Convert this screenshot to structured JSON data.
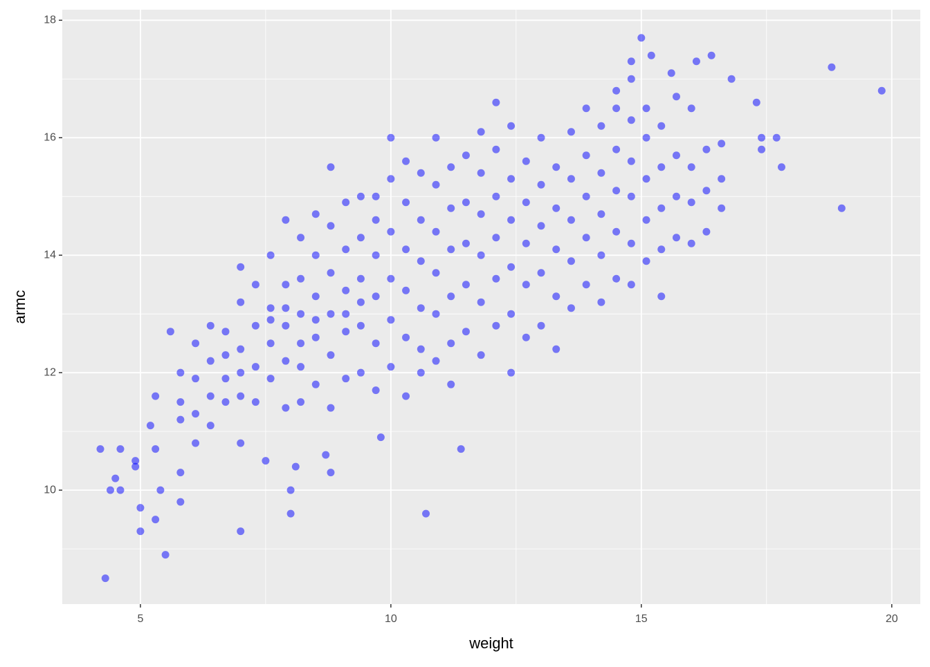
{
  "chart_data": {
    "type": "scatter",
    "x_label": "weight",
    "y_label": "armc",
    "color": "#0000ff",
    "opacity": 0.5,
    "grid": true,
    "xlim": [
      3.44,
      20.57
    ],
    "ylim": [
      8.06,
      18.18
    ],
    "xticks": [
      5,
      10,
      15,
      20
    ],
    "yticks": [
      10,
      12,
      14,
      16,
      18
    ],
    "xminor": [
      7.5,
      12.5,
      17.5
    ],
    "yminor": [
      9,
      11,
      13,
      15,
      17
    ],
    "x": [
      4.2,
      4.3,
      4.4,
      4.5,
      4.6,
      4.6,
      4.9,
      4.9,
      5.0,
      5.0,
      5.2,
      5.3,
      5.3,
      5.3,
      5.4,
      5.5,
      5.6,
      5.8,
      5.8,
      7.0,
      7.0,
      7.5,
      8.0,
      8.0,
      8.1,
      8.7,
      8.8,
      9.8,
      10.7,
      11.4,
      15.0,
      15.2,
      14.8,
      16.4,
      16.1,
      15.6,
      16.8,
      14.8,
      18.8,
      19.8,
      19.0,
      17.8,
      17.3,
      17.7,
      17.4,
      17.4,
      14.5,
      12.1,
      15.4,
      5.8,
      5.8,
      5.8,
      6.1,
      6.1,
      6.1,
      6.1,
      6.4,
      6.4,
      6.4,
      6.4,
      6.7,
      6.7,
      6.7,
      6.7,
      7.0,
      7.0,
      7.0,
      7.0,
      7.0,
      7.3,
      7.3,
      7.3,
      7.3,
      7.6,
      7.6,
      7.6,
      7.6,
      7.6,
      7.9,
      7.9,
      7.9,
      7.9,
      7.9,
      7.9,
      8.2,
      8.2,
      8.2,
      8.2,
      8.2,
      8.2,
      8.5,
      8.5,
      8.5,
      8.5,
      8.5,
      8.5,
      8.8,
      8.8,
      8.8,
      8.8,
      8.8,
      8.8,
      9.1,
      9.1,
      9.1,
      9.1,
      9.1,
      9.1,
      9.4,
      9.4,
      9.4,
      9.4,
      9.4,
      9.4,
      9.7,
      9.7,
      9.7,
      9.7,
      9.7,
      9.7,
      10.0,
      10.0,
      10.0,
      10.0,
      10.0,
      10.0,
      10.3,
      10.3,
      10.3,
      10.3,
      10.3,
      10.3,
      10.6,
      10.6,
      10.6,
      10.6,
      10.6,
      10.6,
      10.9,
      10.9,
      10.9,
      10.9,
      10.9,
      10.9,
      11.2,
      11.2,
      11.2,
      11.2,
      11.2,
      11.2,
      11.5,
      11.5,
      11.5,
      11.5,
      11.5,
      11.8,
      11.8,
      11.8,
      11.8,
      11.8,
      11.8,
      12.1,
      12.1,
      12.1,
      12.1,
      12.1,
      12.4,
      12.4,
      12.4,
      12.4,
      12.4,
      12.4,
      12.7,
      12.7,
      12.7,
      12.7,
      12.7,
      13.0,
      13.0,
      13.0,
      13.0,
      13.0,
      13.3,
      13.3,
      13.3,
      13.3,
      13.3,
      13.6,
      13.6,
      13.6,
      13.6,
      13.6,
      13.9,
      13.9,
      13.9,
      13.9,
      13.9,
      14.2,
      14.2,
      14.2,
      14.2,
      14.2,
      14.5,
      14.5,
      14.5,
      14.5,
      14.5,
      14.8,
      14.8,
      14.8,
      14.8,
      14.8,
      15.1,
      15.1,
      15.1,
      15.1,
      15.1,
      15.4,
      15.4,
      15.4,
      15.4,
      15.7,
      15.7,
      15.7,
      15.7,
      16.0,
      16.0,
      16.0,
      16.0,
      16.3,
      16.3,
      16.3,
      16.6,
      16.6,
      16.6
    ],
    "values": [
      10.7,
      8.5,
      10.0,
      10.2,
      10.7,
      10.0,
      10.5,
      10.4,
      9.7,
      9.3,
      11.1,
      9.5,
      10.7,
      11.6,
      10.0,
      8.9,
      12.7,
      9.8,
      10.3,
      9.3,
      10.8,
      10.5,
      10.0,
      9.6,
      10.4,
      10.6,
      10.3,
      10.9,
      9.6,
      10.7,
      17.7,
      17.4,
      17.3,
      17.4,
      17.3,
      17.1,
      17.0,
      17.0,
      17.2,
      16.8,
      14.8,
      15.5,
      16.6,
      16.0,
      16.0,
      15.8,
      16.8,
      16.6,
      13.3,
      11.2,
      12.0,
      11.5,
      10.8,
      11.9,
      12.5,
      11.3,
      11.1,
      12.2,
      12.8,
      11.6,
      11.5,
      12.3,
      12.7,
      11.9,
      11.6,
      12.4,
      13.2,
      13.8,
      12.0,
      11.5,
      12.8,
      13.5,
      12.1,
      11.9,
      12.5,
      13.1,
      14.0,
      12.9,
      11.4,
      12.2,
      12.8,
      13.5,
      14.6,
      13.1,
      11.5,
      12.5,
      13.0,
      13.6,
      14.3,
      12.1,
      11.8,
      12.6,
      13.3,
      14.0,
      12.9,
      14.7,
      11.4,
      12.3,
      13.0,
      13.7,
      14.5,
      15.5,
      11.9,
      12.7,
      13.4,
      14.1,
      14.9,
      13.0,
      12.0,
      12.8,
      13.6,
      14.3,
      15.0,
      13.2,
      11.7,
      12.5,
      13.3,
      14.0,
      14.6,
      15.0,
      12.1,
      12.9,
      13.6,
      14.4,
      15.3,
      16.0,
      11.6,
      12.6,
      13.4,
      14.1,
      14.9,
      15.6,
      12.4,
      13.1,
      13.9,
      14.6,
      15.4,
      12.0,
      12.2,
      13.0,
      13.7,
      14.4,
      15.2,
      16.0,
      12.5,
      13.3,
      14.1,
      14.8,
      15.5,
      11.8,
      12.7,
      13.5,
      14.2,
      14.9,
      15.7,
      12.3,
      13.2,
      14.0,
      14.7,
      15.4,
      16.1,
      12.8,
      13.6,
      14.3,
      15.0,
      15.8,
      12.0,
      13.0,
      13.8,
      14.6,
      15.3,
      16.2,
      12.6,
      13.5,
      14.2,
      14.9,
      15.6,
      12.8,
      13.7,
      14.5,
      15.2,
      16.0,
      12.4,
      13.3,
      14.1,
      14.8,
      15.5,
      13.1,
      13.9,
      14.6,
      15.3,
      16.1,
      13.5,
      14.3,
      15.0,
      15.7,
      16.5,
      13.2,
      14.0,
      14.7,
      15.4,
      16.2,
      13.6,
      14.4,
      15.1,
      15.8,
      16.5,
      13.5,
      14.2,
      15.0,
      15.6,
      16.3,
      13.9,
      14.6,
      15.3,
      16.0,
      16.5,
      14.1,
      14.8,
      15.5,
      16.2,
      14.3,
      15.0,
      15.7,
      16.7,
      14.2,
      14.9,
      15.5,
      16.5,
      14.4,
      15.1,
      15.8,
      14.8,
      15.3,
      15.9
    ]
  }
}
